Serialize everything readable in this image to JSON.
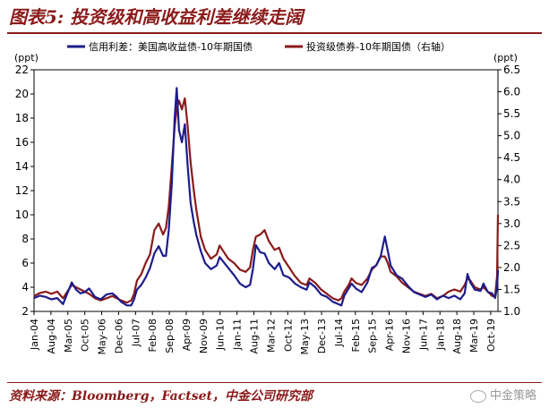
{
  "figure": {
    "title": "图表5: 投资级和高收益利差继续走阔",
    "source": "资料来源：Bloomberg，Factset，中金公司研究部",
    "watermark": "中金策略"
  },
  "colors": {
    "series1": "#1c1c8c",
    "series2": "#8b1a1a",
    "accent": "#8b1a1a",
    "axis": "#000000"
  },
  "chart_data": {
    "type": "line",
    "title": "投资级和高收益利差继续走阔",
    "left_unit": "(ppt)",
    "right_unit": "(ppt)",
    "y_left": {
      "min": 2,
      "max": 22,
      "ticks": [
        2,
        4,
        6,
        8,
        10,
        12,
        14,
        16,
        18,
        20,
        22
      ]
    },
    "y_right": {
      "min": 1.0,
      "max": 6.5,
      "ticks": [
        "1.0",
        "1.5",
        "2.0",
        "2.5",
        "3.0",
        "3.5",
        "4.0",
        "4.5",
        "5.0",
        "5.5",
        "6.0",
        "6.5"
      ]
    },
    "x_range": [
      "2004-01",
      "2019-12"
    ],
    "x_ticks": [
      "Jan-04",
      "Aug-04",
      "Mar-05",
      "Oct-05",
      "May-06",
      "Dec-06",
      "Jul-07",
      "Feb-08",
      "Sep-08",
      "Apr-09",
      "Nov-09",
      "Jun-10",
      "Jan-11",
      "Aug-11",
      "Mar-12",
      "Oct-12",
      "May-13",
      "Dec-13",
      "Jul-14",
      "Feb-15",
      "Sep-15",
      "Apr-16",
      "Nov-16",
      "Jun-17",
      "Jan-18",
      "Aug-18",
      "Mar-19",
      "Oct-19"
    ],
    "series": [
      {
        "name": "信用利差：美国高收益债-10年期国债",
        "axis": "left",
        "points": [
          [
            2004.0,
            3.1
          ],
          [
            2004.2,
            3.3
          ],
          [
            2004.4,
            3.2
          ],
          [
            2004.6,
            3.0
          ],
          [
            2004.8,
            3.1
          ],
          [
            2005.0,
            2.6
          ],
          [
            2005.15,
            3.5
          ],
          [
            2005.3,
            4.4
          ],
          [
            2005.45,
            3.8
          ],
          [
            2005.6,
            3.5
          ],
          [
            2005.75,
            3.6
          ],
          [
            2005.9,
            3.9
          ],
          [
            2006.1,
            3.2
          ],
          [
            2006.3,
            3.0
          ],
          [
            2006.5,
            3.4
          ],
          [
            2006.7,
            3.5
          ],
          [
            2006.85,
            3.2
          ],
          [
            2007.0,
            2.8
          ],
          [
            2007.2,
            2.5
          ],
          [
            2007.35,
            2.5
          ],
          [
            2007.45,
            3.0
          ],
          [
            2007.55,
            3.8
          ],
          [
            2007.7,
            4.2
          ],
          [
            2007.85,
            4.8
          ],
          [
            2008.0,
            5.6
          ],
          [
            2008.15,
            6.8
          ],
          [
            2008.3,
            7.4
          ],
          [
            2008.45,
            6.6
          ],
          [
            2008.55,
            6.6
          ],
          [
            2008.65,
            8.8
          ],
          [
            2008.75,
            12.5
          ],
          [
            2008.85,
            18.0
          ],
          [
            2008.92,
            20.5
          ],
          [
            2009.0,
            17.0
          ],
          [
            2009.1,
            16.0
          ],
          [
            2009.2,
            17.5
          ],
          [
            2009.3,
            14.0
          ],
          [
            2009.4,
            11.0
          ],
          [
            2009.5,
            9.5
          ],
          [
            2009.6,
            8.3
          ],
          [
            2009.75,
            7.0
          ],
          [
            2009.9,
            6.0
          ],
          [
            2010.1,
            5.5
          ],
          [
            2010.3,
            5.8
          ],
          [
            2010.4,
            6.5
          ],
          [
            2010.5,
            6.2
          ],
          [
            2010.7,
            5.6
          ],
          [
            2010.9,
            5.0
          ],
          [
            2011.1,
            4.3
          ],
          [
            2011.3,
            4.0
          ],
          [
            2011.45,
            4.2
          ],
          [
            2011.55,
            5.5
          ],
          [
            2011.65,
            7.5
          ],
          [
            2011.8,
            6.9
          ],
          [
            2011.95,
            6.8
          ],
          [
            2012.1,
            6.0
          ],
          [
            2012.3,
            5.5
          ],
          [
            2012.45,
            6.0
          ],
          [
            2012.6,
            5.0
          ],
          [
            2012.8,
            4.8
          ],
          [
            2013.0,
            4.3
          ],
          [
            2013.2,
            4.0
          ],
          [
            2013.4,
            3.8
          ],
          [
            2013.5,
            4.4
          ],
          [
            2013.7,
            4.0
          ],
          [
            2013.9,
            3.4
          ],
          [
            2014.1,
            3.2
          ],
          [
            2014.3,
            2.8
          ],
          [
            2014.5,
            2.6
          ],
          [
            2014.6,
            2.5
          ],
          [
            2014.7,
            3.3
          ],
          [
            2014.85,
            3.9
          ],
          [
            2014.95,
            4.3
          ],
          [
            2015.1,
            3.9
          ],
          [
            2015.3,
            3.6
          ],
          [
            2015.5,
            4.4
          ],
          [
            2015.65,
            5.6
          ],
          [
            2015.8,
            5.8
          ],
          [
            2015.95,
            6.5
          ],
          [
            2016.1,
            8.2
          ],
          [
            2016.2,
            7.0
          ],
          [
            2016.3,
            5.8
          ],
          [
            2016.5,
            5.0
          ],
          [
            2016.7,
            4.7
          ],
          [
            2016.9,
            4.1
          ],
          [
            2017.1,
            3.6
          ],
          [
            2017.3,
            3.4
          ],
          [
            2017.5,
            3.2
          ],
          [
            2017.7,
            3.4
          ],
          [
            2017.9,
            3.0
          ],
          [
            2018.1,
            3.3
          ],
          [
            2018.3,
            3.1
          ],
          [
            2018.5,
            3.3
          ],
          [
            2018.7,
            3.0
          ],
          [
            2018.85,
            3.5
          ],
          [
            2018.95,
            5.1
          ],
          [
            2019.05,
            4.4
          ],
          [
            2019.2,
            3.8
          ],
          [
            2019.4,
            3.7
          ],
          [
            2019.5,
            4.3
          ],
          [
            2019.65,
            3.6
          ],
          [
            2019.8,
            3.5
          ],
          [
            2019.9,
            3.1
          ],
          [
            2019.97,
            4.0
          ],
          [
            2020.0,
            5.4
          ]
        ]
      },
      {
        "name": "投资级债券-10年期国债（右轴）",
        "axis": "right",
        "points": [
          [
            2004.0,
            1.35
          ],
          [
            2004.2,
            1.42
          ],
          [
            2004.4,
            1.45
          ],
          [
            2004.6,
            1.4
          ],
          [
            2004.8,
            1.45
          ],
          [
            2005.0,
            1.3
          ],
          [
            2005.15,
            1.45
          ],
          [
            2005.3,
            1.6
          ],
          [
            2005.45,
            1.55
          ],
          [
            2005.6,
            1.5
          ],
          [
            2005.75,
            1.45
          ],
          [
            2005.9,
            1.4
          ],
          [
            2006.1,
            1.3
          ],
          [
            2006.3,
            1.25
          ],
          [
            2006.5,
            1.3
          ],
          [
            2006.7,
            1.35
          ],
          [
            2006.85,
            1.3
          ],
          [
            2007.0,
            1.25
          ],
          [
            2007.2,
            1.2
          ],
          [
            2007.35,
            1.25
          ],
          [
            2007.45,
            1.4
          ],
          [
            2007.55,
            1.7
          ],
          [
            2007.7,
            1.85
          ],
          [
            2007.85,
            2.1
          ],
          [
            2008.0,
            2.3
          ],
          [
            2008.15,
            2.85
          ],
          [
            2008.3,
            3.0
          ],
          [
            2008.45,
            2.75
          ],
          [
            2008.55,
            2.9
          ],
          [
            2008.65,
            3.4
          ],
          [
            2008.75,
            4.3
          ],
          [
            2008.85,
            5.2
          ],
          [
            2008.92,
            5.6
          ],
          [
            2009.0,
            5.8
          ],
          [
            2009.1,
            5.6
          ],
          [
            2009.2,
            5.85
          ],
          [
            2009.3,
            5.2
          ],
          [
            2009.4,
            4.4
          ],
          [
            2009.5,
            3.8
          ],
          [
            2009.6,
            3.3
          ],
          [
            2009.75,
            2.7
          ],
          [
            2009.9,
            2.4
          ],
          [
            2010.1,
            2.2
          ],
          [
            2010.3,
            2.3
          ],
          [
            2010.4,
            2.5
          ],
          [
            2010.5,
            2.4
          ],
          [
            2010.7,
            2.2
          ],
          [
            2010.9,
            2.1
          ],
          [
            2011.1,
            1.95
          ],
          [
            2011.3,
            1.9
          ],
          [
            2011.45,
            2.0
          ],
          [
            2011.55,
            2.4
          ],
          [
            2011.65,
            2.7
          ],
          [
            2011.8,
            2.75
          ],
          [
            2011.95,
            2.85
          ],
          [
            2012.1,
            2.6
          ],
          [
            2012.3,
            2.4
          ],
          [
            2012.45,
            2.45
          ],
          [
            2012.6,
            2.2
          ],
          [
            2012.8,
            2.0
          ],
          [
            2013.0,
            1.8
          ],
          [
            2013.2,
            1.65
          ],
          [
            2013.4,
            1.6
          ],
          [
            2013.5,
            1.75
          ],
          [
            2013.7,
            1.65
          ],
          [
            2013.9,
            1.5
          ],
          [
            2014.1,
            1.4
          ],
          [
            2014.3,
            1.3
          ],
          [
            2014.5,
            1.25
          ],
          [
            2014.6,
            1.3
          ],
          [
            2014.7,
            1.45
          ],
          [
            2014.85,
            1.6
          ],
          [
            2014.95,
            1.75
          ],
          [
            2015.1,
            1.65
          ],
          [
            2015.3,
            1.6
          ],
          [
            2015.5,
            1.75
          ],
          [
            2015.65,
            1.95
          ],
          [
            2015.8,
            2.05
          ],
          [
            2015.95,
            2.25
          ],
          [
            2016.1,
            2.25
          ],
          [
            2016.2,
            2.1
          ],
          [
            2016.3,
            1.9
          ],
          [
            2016.5,
            1.8
          ],
          [
            2016.7,
            1.65
          ],
          [
            2016.9,
            1.55
          ],
          [
            2017.1,
            1.45
          ],
          [
            2017.3,
            1.4
          ],
          [
            2017.5,
            1.35
          ],
          [
            2017.7,
            1.4
          ],
          [
            2017.9,
            1.3
          ],
          [
            2018.1,
            1.35
          ],
          [
            2018.3,
            1.45
          ],
          [
            2018.5,
            1.5
          ],
          [
            2018.7,
            1.45
          ],
          [
            2018.85,
            1.6
          ],
          [
            2018.95,
            1.75
          ],
          [
            2019.05,
            1.7
          ],
          [
            2019.2,
            1.55
          ],
          [
            2019.4,
            1.5
          ],
          [
            2019.5,
            1.55
          ],
          [
            2019.65,
            1.45
          ],
          [
            2019.8,
            1.35
          ],
          [
            2019.9,
            1.35
          ],
          [
            2019.97,
            1.8
          ],
          [
            2020.0,
            3.2
          ]
        ]
      }
    ]
  }
}
